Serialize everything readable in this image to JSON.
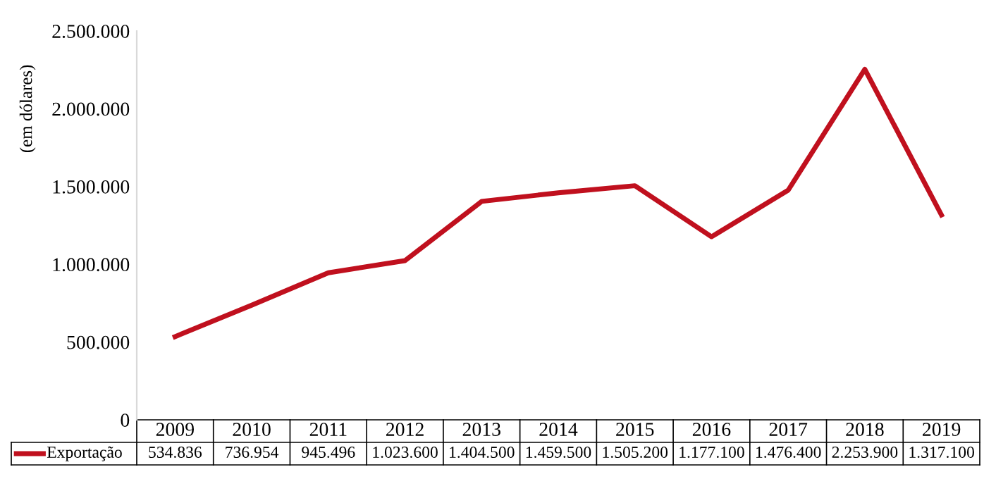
{
  "chart_data": {
    "type": "line",
    "ylabel": "(em dólares)",
    "categories": [
      "2009",
      "2010",
      "2011",
      "2012",
      "2013",
      "2014",
      "2015",
      "2016",
      "2017",
      "2018",
      "2019"
    ],
    "series": [
      {
        "name": "Exportação",
        "color": "#c0101e",
        "values": [
          534836,
          736954,
          945496,
          1023600,
          1404500,
          1459500,
          1505200,
          1177100,
          1476400,
          2253900,
          1317100
        ],
        "value_labels": [
          "534.836",
          "736.954",
          "945.496",
          "1.023.600",
          "1.404.500",
          "1.459.500",
          "1.505.200",
          "1.177.100",
          "1.476.400",
          "2.253.900",
          "1.317.100"
        ]
      }
    ],
    "ylim": [
      0,
      2500000
    ],
    "yticks": [
      {
        "value": 0,
        "label": "0"
      },
      {
        "value": 500000,
        "label": "500.000"
      },
      {
        "value": 1000000,
        "label": "1.000.000"
      },
      {
        "value": 1500000,
        "label": "1.500.000"
      },
      {
        "value": 2000000,
        "label": "2.000.000"
      },
      {
        "value": 2500000,
        "label": "2.500.000"
      }
    ],
    "grid": false,
    "legend": "bottom",
    "marker": "none",
    "line_style": "solid"
  }
}
